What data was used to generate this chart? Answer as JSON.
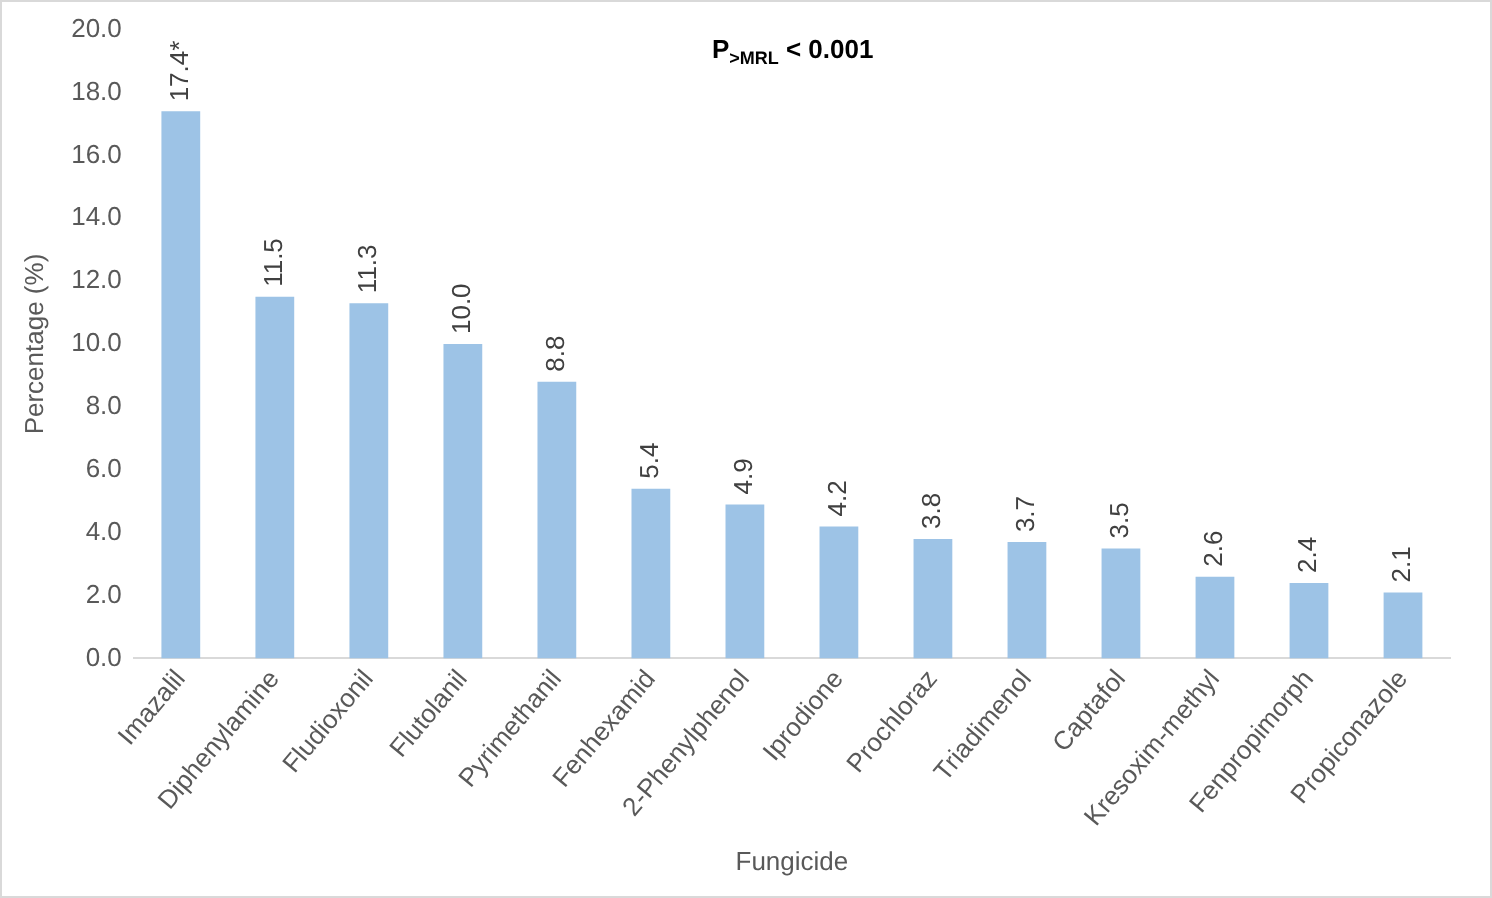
{
  "chart_data": {
    "type": "bar",
    "xlabel": "Fungicide",
    "ylabel": "Percentage (%)",
    "categories": [
      "Imazalil",
      "Diphenylamine",
      "Fludioxonil",
      "Flutolanil",
      "Pyrimethanil",
      "Fenhexamid",
      "2-Phenylphenol",
      "Iprodione",
      "Prochloraz",
      "Triadimenol",
      "Captafol",
      "Kresoxim-methyl",
      "Fenpropimorph",
      "Propiconazole"
    ],
    "values": [
      17.4,
      11.5,
      11.3,
      10.0,
      8.8,
      5.4,
      4.9,
      4.2,
      3.8,
      3.7,
      3.5,
      2.6,
      2.4,
      2.1
    ],
    "value_labels": [
      "17.4*",
      "11.5",
      "11.3",
      "10.0",
      "8.8",
      "5.4",
      "4.9",
      "4.2",
      "3.8",
      "3.7",
      "3.5",
      "2.6",
      "2.4",
      "2.1"
    ],
    "color": "#9dc3e6",
    "ylim": [
      0,
      20
    ],
    "yticks": [
      {
        "value": 0,
        "label": "0.0"
      },
      {
        "value": 2,
        "label": "2.0"
      },
      {
        "value": 4,
        "label": "4.0"
      },
      {
        "value": 6,
        "label": "6.0"
      },
      {
        "value": 8,
        "label": "8.0"
      },
      {
        "value": 10,
        "label": "10.0"
      },
      {
        "value": 12,
        "label": "12.0"
      },
      {
        "value": 14,
        "label": "14.0"
      },
      {
        "value": 16,
        "label": "16.0"
      },
      {
        "value": 18,
        "label": "18.0"
      },
      {
        "value": 20,
        "label": "20.0"
      }
    ],
    "grid": false,
    "legend": false,
    "annotations": [
      "P$_{>MRL}$ < 0.001"
    ]
  }
}
